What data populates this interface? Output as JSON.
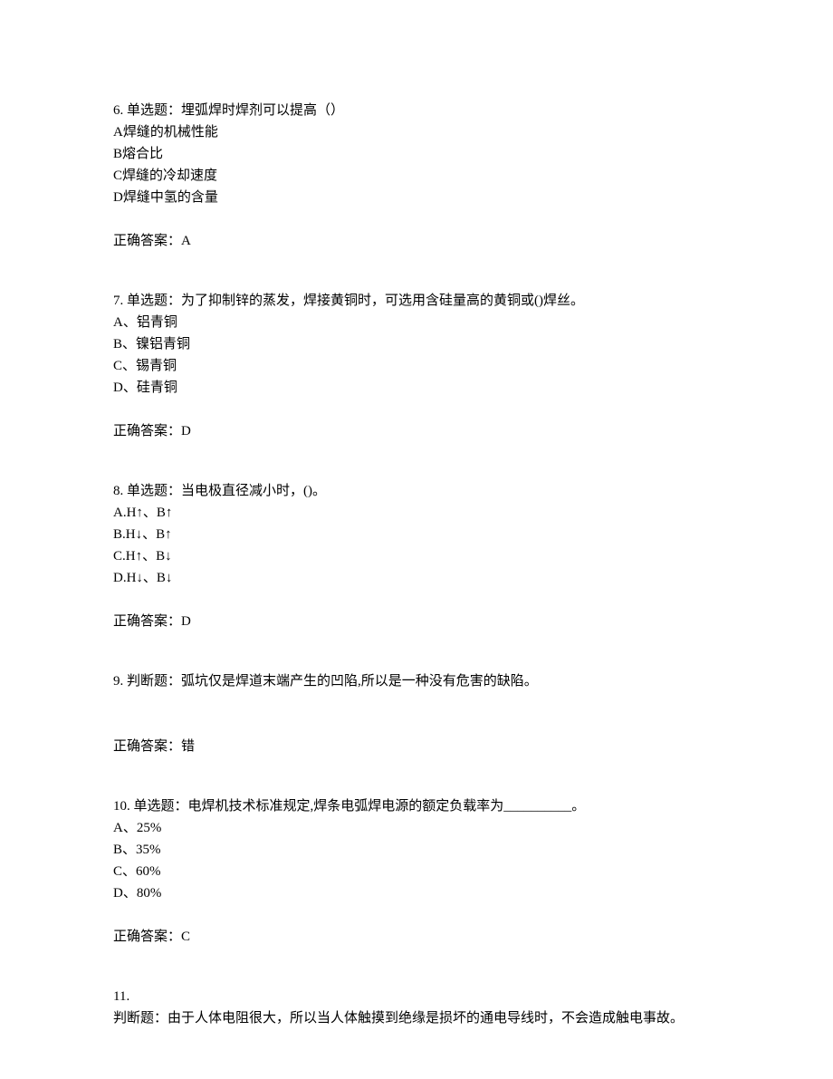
{
  "questions": [
    {
      "number": "6.",
      "type": "单选题：",
      "text": "埋弧焊时焊剂可以提高（）",
      "options": [
        "A焊缝的机械性能",
        "B熔合比",
        "C焊缝的冷却速度",
        "D焊缝中氢的含量"
      ],
      "answer_label": "正确答案：",
      "answer": "A"
    },
    {
      "number": "7.",
      "type": "单选题：",
      "text": "为了抑制锌的蒸发，焊接黄铜时，可选用含硅量高的黄铜或()焊丝。",
      "options": [
        "A、铝青铜",
        "B、镍铝青铜",
        "C、锡青铜",
        "D、硅青铜"
      ],
      "answer_label": "正确答案：",
      "answer": "D"
    },
    {
      "number": "8.",
      "type": "单选题：",
      "text": "当电极直径减小时，()。",
      "options": [
        "A.H↑、B↑",
        "B.H↓、B↑",
        "C.H↑、B↓",
        "D.H↓、B↓"
      ],
      "answer_label": "正确答案：",
      "answer": "D"
    },
    {
      "number": "9.",
      "type": "判断题：",
      "text": "弧坑仅是焊道末端产生的凹陷,所以是一种没有危害的缺陷。",
      "options": [],
      "answer_label": "正确答案：",
      "answer": "错"
    },
    {
      "number": "10.",
      "type": "单选题：",
      "text": "电焊机技术标准规定,焊条电弧焊电源的额定负载率为__________。",
      "options": [
        "A、25%",
        "B、35%",
        "C、60%",
        "D、80%"
      ],
      "answer_label": "正确答案：",
      "answer": "C"
    },
    {
      "number": "11.",
      "type": "判断题：",
      "text": "由于人体电阻很大，所以当人体触摸到绝缘是损坏的通电导线时，不会造成触电事故。",
      "options": [],
      "answer_label": "",
      "answer": ""
    }
  ]
}
